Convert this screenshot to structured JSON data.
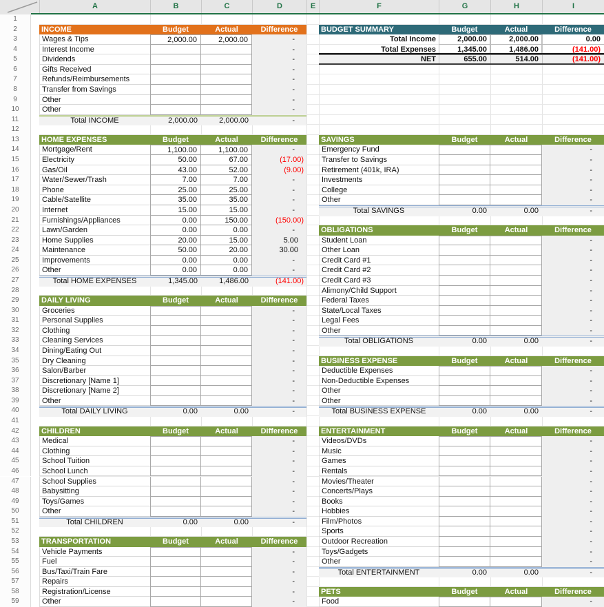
{
  "sheet": {
    "column_letters": [
      "A",
      "B",
      "C",
      "D",
      "E",
      "F",
      "G",
      "H",
      "I"
    ],
    "row_count": 59,
    "colors": {
      "orange": "#E2711B",
      "green": "#7C9C41",
      "teal": "#2E6A78",
      "negative": "#FF0000",
      "total_line_green": "#BCCF92",
      "total_line_blue": "#92AFD4",
      "excel_green": "#217346"
    },
    "header_labels": {
      "budget": "Budget",
      "actual": "Actual",
      "difference": "Difference"
    },
    "summary": {
      "title": "BUDGET SUMMARY",
      "color": "teal",
      "header_row": 2,
      "rows": [
        [
          "Total Income",
          "2,000.00",
          "2,000.00",
          "0.00"
        ],
        [
          "Total Expenses",
          "1,345.00",
          "1,486.00",
          "(141.00)"
        ],
        [
          "NET",
          "655.00",
          "514.00",
          "(141.00)"
        ]
      ]
    },
    "sections": [
      {
        "side": "left",
        "title": "INCOME",
        "color": "orange",
        "header_row": 2,
        "total_line": "green",
        "items": [
          [
            "Wages & Tips",
            "2,000.00",
            "2,000.00",
            "-"
          ],
          [
            "Interest Income",
            "",
            "",
            "-"
          ],
          [
            "Dividends",
            "",
            "",
            "-"
          ],
          [
            "Gifts Received",
            "",
            "",
            "-"
          ],
          [
            "Refunds/Reimbursements",
            "",
            "",
            "-"
          ],
          [
            "Transfer from Savings",
            "",
            "",
            "-"
          ],
          [
            "Other",
            "",
            "",
            "-"
          ],
          [
            "Other",
            "",
            "",
            "-"
          ]
        ],
        "total": [
          "Total INCOME",
          "2,000.00",
          "2,000.00",
          "-"
        ]
      },
      {
        "side": "left",
        "title": "HOME EXPENSES",
        "color": "green",
        "header_row": 13,
        "total_line": "blue",
        "items": [
          [
            "Mortgage/Rent",
            "1,100.00",
            "1,100.00",
            "-"
          ],
          [
            "Electricity",
            "50.00",
            "67.00",
            "(17.00)"
          ],
          [
            "Gas/Oil",
            "43.00",
            "52.00",
            "(9.00)"
          ],
          [
            "Water/Sewer/Trash",
            "7.00",
            "7.00",
            "-"
          ],
          [
            "Phone",
            "25.00",
            "25.00",
            "-"
          ],
          [
            "Cable/Satellite",
            "35.00",
            "35.00",
            "-"
          ],
          [
            "Internet",
            "15.00",
            "15.00",
            "-"
          ],
          [
            "Furnishings/Appliances",
            "0.00",
            "150.00",
            "(150.00)"
          ],
          [
            "Lawn/Garden",
            "0.00",
            "0.00",
            "-"
          ],
          [
            "Home Supplies",
            "20.00",
            "15.00",
            "5.00"
          ],
          [
            "Maintenance",
            "50.00",
            "20.00",
            "30.00"
          ],
          [
            "Improvements",
            "0.00",
            "0.00",
            "-"
          ],
          [
            "Other",
            "0.00",
            "0.00",
            "-"
          ]
        ],
        "total": [
          "Total HOME EXPENSES",
          "1,345.00",
          "1,486.00",
          "(141.00)"
        ]
      },
      {
        "side": "left",
        "title": "DAILY LIVING",
        "color": "green",
        "header_row": 29,
        "total_line": "blue",
        "items": [
          [
            "Groceries",
            "",
            "",
            "-"
          ],
          [
            "Personal Supplies",
            "",
            "",
            "-"
          ],
          [
            "Clothing",
            "",
            "",
            "-"
          ],
          [
            "Cleaning Services",
            "",
            "",
            "-"
          ],
          [
            "Dining/Eating Out",
            "",
            "",
            "-"
          ],
          [
            "Dry Cleaning",
            "",
            "",
            "-"
          ],
          [
            "Salon/Barber",
            "",
            "",
            "-"
          ],
          [
            "Discretionary [Name 1]",
            "",
            "",
            "-"
          ],
          [
            "Discretionary [Name 2]",
            "",
            "",
            "-"
          ],
          [
            "Other",
            "",
            "",
            "-"
          ]
        ],
        "total": [
          "Total DAILY LIVING",
          "0.00",
          "0.00",
          "-"
        ]
      },
      {
        "side": "left",
        "title": "CHILDREN",
        "color": "green",
        "header_row": 42,
        "total_line": "blue",
        "items": [
          [
            "Medical",
            "",
            "",
            "-"
          ],
          [
            "Clothing",
            "",
            "",
            "-"
          ],
          [
            "School Tuition",
            "",
            "",
            "-"
          ],
          [
            "School Lunch",
            "",
            "",
            "-"
          ],
          [
            "School Supplies",
            "",
            "",
            "-"
          ],
          [
            "Babysitting",
            "",
            "",
            "-"
          ],
          [
            "Toys/Games",
            "",
            "",
            "-"
          ],
          [
            "Other",
            "",
            "",
            "-"
          ]
        ],
        "total": [
          "Total CHILDREN",
          "0.00",
          "0.00",
          "-"
        ]
      },
      {
        "side": "left",
        "title": "TRANSPORTATION",
        "color": "green",
        "header_row": 53,
        "total_line": "blue",
        "items": [
          [
            "Vehicle Payments",
            "",
            "",
            "-"
          ],
          [
            "Fuel",
            "",
            "",
            "-"
          ],
          [
            "Bus/Taxi/Train Fare",
            "",
            "",
            "-"
          ],
          [
            "Repairs",
            "",
            "",
            "-"
          ],
          [
            "Registration/License",
            "",
            "",
            "-"
          ],
          [
            "Other",
            "",
            "",
            "-"
          ]
        ],
        "total": null
      },
      {
        "side": "right",
        "title": "SAVINGS",
        "color": "green",
        "header_row": 13,
        "total_line": "blue",
        "items": [
          [
            "Emergency Fund",
            "",
            "",
            "-"
          ],
          [
            "Transfer to Savings",
            "",
            "",
            "-"
          ],
          [
            "Retirement (401k, IRA)",
            "",
            "",
            "-"
          ],
          [
            "Investments",
            "",
            "",
            "-"
          ],
          [
            "College",
            "",
            "",
            "-"
          ],
          [
            "Other",
            "",
            "",
            "-"
          ]
        ],
        "total": [
          "Total SAVINGS",
          "0.00",
          "0.00",
          "-"
        ]
      },
      {
        "side": "right",
        "title": "OBLIGATIONS",
        "color": "green",
        "header_row": 22,
        "total_line": "blue",
        "items": [
          [
            "Student Loan",
            "",
            "",
            "-"
          ],
          [
            "Other Loan",
            "",
            "",
            "-"
          ],
          [
            "Credit Card #1",
            "",
            "",
            "-"
          ],
          [
            "Credit Card #2",
            "",
            "",
            "-"
          ],
          [
            "Credit Card #3",
            "",
            "",
            "-"
          ],
          [
            "Alimony/Child Support",
            "",
            "",
            "-"
          ],
          [
            "Federal Taxes",
            "",
            "",
            "-"
          ],
          [
            "State/Local Taxes",
            "",
            "",
            "-"
          ],
          [
            "Legal Fees",
            "",
            "",
            "-"
          ],
          [
            "Other",
            "",
            "",
            "-"
          ]
        ],
        "total": [
          "Total OBLIGATIONS",
          "0.00",
          "0.00",
          "-"
        ]
      },
      {
        "side": "right",
        "title": "BUSINESS EXPENSE",
        "color": "green",
        "header_row": 35,
        "total_line": "blue",
        "items": [
          [
            "Deductible Expenses",
            "",
            "",
            "-"
          ],
          [
            "Non-Deductible Expenses",
            "",
            "",
            "-"
          ],
          [
            "Other",
            "",
            "",
            "-"
          ],
          [
            "Other",
            "",
            "",
            "-"
          ]
        ],
        "total": [
          "Total BUSINESS EXPENSE",
          "0.00",
          "0.00",
          "-"
        ]
      },
      {
        "side": "right",
        "title": "ENTERTAINMENT",
        "color": "green",
        "header_row": 42,
        "total_line": "blue",
        "items": [
          [
            "Videos/DVDs",
            "",
            "",
            "-"
          ],
          [
            "Music",
            "",
            "",
            "-"
          ],
          [
            "Games",
            "",
            "",
            "-"
          ],
          [
            "Rentals",
            "",
            "",
            "-"
          ],
          [
            "Movies/Theater",
            "",
            "",
            "-"
          ],
          [
            "Concerts/Plays",
            "",
            "",
            "-"
          ],
          [
            "Books",
            "",
            "",
            "-"
          ],
          [
            "Hobbies",
            "",
            "",
            "-"
          ],
          [
            "Film/Photos",
            "",
            "",
            "-"
          ],
          [
            "Sports",
            "",
            "",
            "-"
          ],
          [
            "Outdoor Recreation",
            "",
            "",
            "-"
          ],
          [
            "Toys/Gadgets",
            "",
            "",
            "-"
          ],
          [
            "Other",
            "",
            "",
            "-"
          ]
        ],
        "total": [
          "Total ENTERTAINMENT",
          "0.00",
          "0.00",
          "-"
        ]
      },
      {
        "side": "right",
        "title": "PETS",
        "color": "green",
        "header_row": 58,
        "total_line": "blue",
        "items": [
          [
            "Food",
            "",
            "",
            "-"
          ]
        ],
        "total": null
      }
    ]
  }
}
